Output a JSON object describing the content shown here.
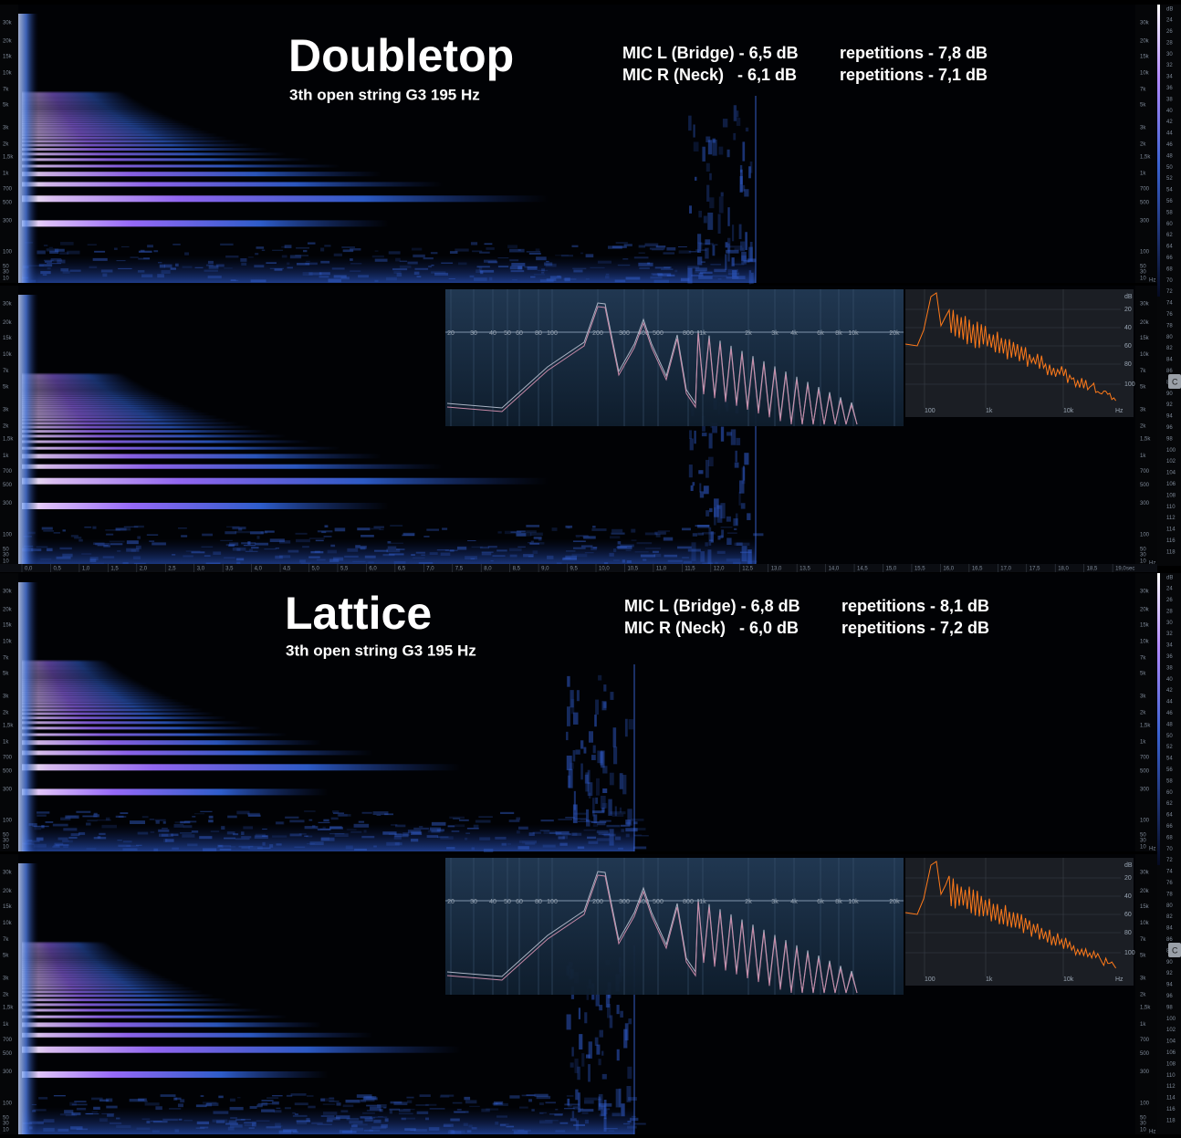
{
  "panels": [
    {
      "title": "Doubletop",
      "subtitle": "3th open string G3 195 Hz",
      "mic_lines": [
        {
          "mic": "MIC L (Bridge) - 6,5 dB",
          "repetitions": "repetitions - 7,8 dB"
        },
        {
          "mic": "MIC R (Neck)   - 6,1 dB",
          "repetitions": "repetitions - 7,1 dB"
        }
      ]
    },
    {
      "title": "Lattice",
      "subtitle": "3th open string G3 195 Hz",
      "mic_lines": [
        {
          "mic": "MIC L (Bridge) - 6,8 dB",
          "repetitions": "repetitions - 8,1 dB"
        },
        {
          "mic": "MIC R (Neck)   - 6,0 dB",
          "repetitions": "repetitions - 7,2 dB"
        }
      ]
    }
  ],
  "freq_ticks": [
    "30k",
    "20k",
    "15k",
    "10k",
    "7k",
    "5k",
    "3k",
    "2k",
    "1,5k",
    "1k",
    "700",
    "500",
    "300",
    "100",
    "50",
    "30",
    "10"
  ],
  "freq_unit": "Hz",
  "time_ticks": [
    "0,0",
    "0,5",
    "1,0",
    "1,5",
    "2,0",
    "2,5",
    "3,0",
    "3,5",
    "4,0",
    "4,5",
    "5,0",
    "5,5",
    "6,0",
    "6,5",
    "7,0",
    "7,5",
    "8,0",
    "8,5",
    "9,0",
    "9,5",
    "10,0",
    "10,5",
    "11,0",
    "11,5",
    "12,0",
    "12,5",
    "13,0",
    "13,5",
    "14,0",
    "14,5",
    "15,0",
    "15,5",
    "16,0",
    "16,5",
    "17,0",
    "17,5",
    "18,0",
    "18,5",
    "19,0"
  ],
  "time_unit": "sec",
  "db_unit": "dB",
  "db_ticks": [
    24,
    26,
    28,
    30,
    32,
    34,
    36,
    38,
    40,
    42,
    44,
    46,
    48,
    50,
    52,
    54,
    56,
    58,
    60,
    62,
    64,
    66,
    68,
    70,
    72,
    74,
    76,
    78,
    80,
    82,
    84,
    86,
    88,
    90,
    92,
    94,
    96,
    98,
    100,
    102,
    104,
    106,
    108,
    110,
    112,
    114,
    116,
    118
  ],
  "eq_ticks": [
    "20",
    "30",
    "40",
    "50",
    "60",
    "80",
    "100",
    "200",
    "300",
    "400",
    "500",
    "800",
    "1k",
    "2k",
    "3k",
    "4k",
    "6k",
    "8k",
    "10k",
    "20k"
  ],
  "analyzer_x_ticks": [
    "100",
    "1k",
    "10k",
    "Hz"
  ],
  "analyzer_y_ticks": [
    "dB",
    "20",
    "40",
    "60",
    "80",
    "100"
  ],
  "side_button": "C"
}
